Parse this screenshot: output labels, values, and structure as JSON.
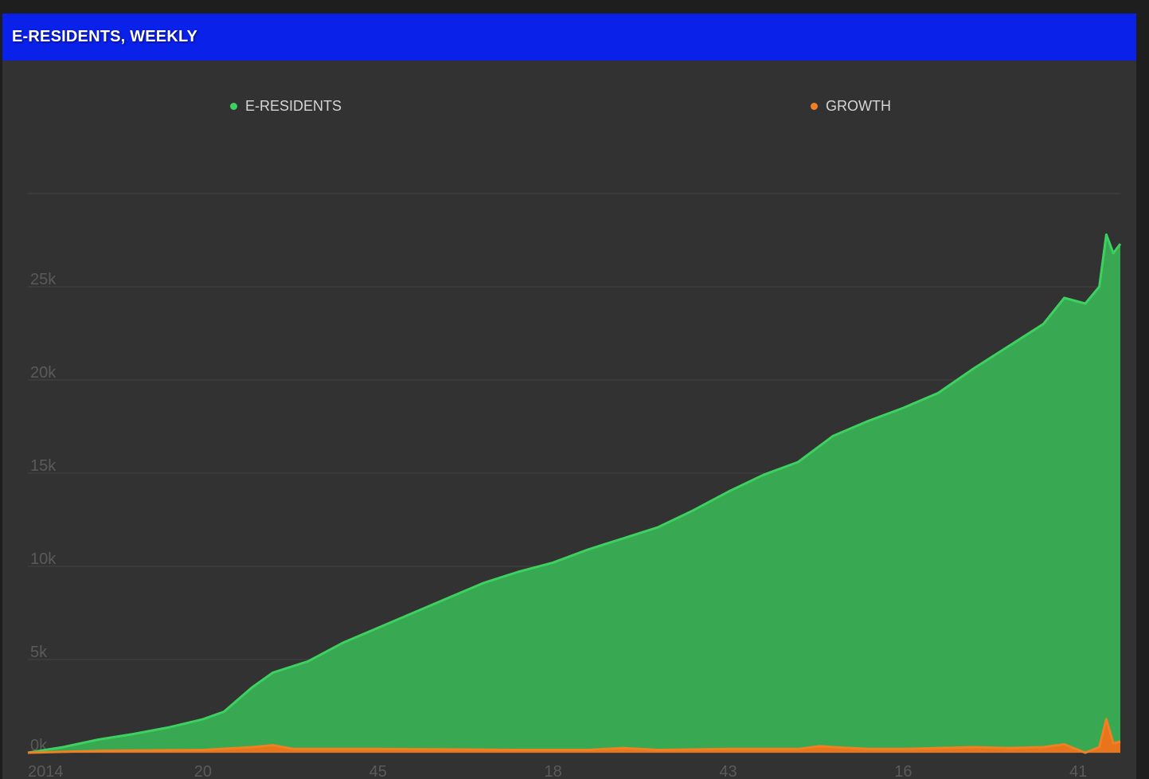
{
  "header": {
    "title": "E-RESIDENTS, WEEKLY"
  },
  "legend": [
    {
      "label": "E-RESIDENTS",
      "color": "#3dd160"
    },
    {
      "label": "GROWTH",
      "color": "#f08022"
    }
  ],
  "chart_data": {
    "type": "area",
    "title": "E-RESIDENTS, WEEKLY",
    "xlabel": "",
    "ylabel": "",
    "ylim": [
      0,
      30000
    ],
    "y_ticks": [
      "0k",
      "5k",
      "10k",
      "15k",
      "20k",
      "25k"
    ],
    "y_tick_values": [
      0,
      5000,
      10000,
      15000,
      20000,
      25000
    ],
    "x_tick_labels": [
      "2014",
      "20",
      "45",
      "18",
      "43",
      "16",
      "41"
    ],
    "x_tick_weeks": [
      0,
      25,
      50,
      75,
      100,
      125,
      150
    ],
    "grid": true,
    "legend_position": "top",
    "series": [
      {
        "name": "E-RESIDENTS",
        "color": "#3dd160",
        "fill": "#38a852",
        "points": [
          [
            0,
            0
          ],
          [
            5,
            300
          ],
          [
            10,
            700
          ],
          [
            15,
            1000
          ],
          [
            20,
            1350
          ],
          [
            25,
            1800
          ],
          [
            28,
            2200
          ],
          [
            32,
            3500
          ],
          [
            35,
            4300
          ],
          [
            40,
            4900
          ],
          [
            45,
            5900
          ],
          [
            50,
            6700
          ],
          [
            55,
            7500
          ],
          [
            60,
            8300
          ],
          [
            65,
            9100
          ],
          [
            70,
            9700
          ],
          [
            75,
            10200
          ],
          [
            80,
            10900
          ],
          [
            85,
            11500
          ],
          [
            90,
            12100
          ],
          [
            95,
            13000
          ],
          [
            100,
            14000
          ],
          [
            105,
            14900
          ],
          [
            110,
            15600
          ],
          [
            115,
            17000
          ],
          [
            120,
            17800
          ],
          [
            125,
            18500
          ],
          [
            130,
            19300
          ],
          [
            135,
            20600
          ],
          [
            140,
            21800
          ],
          [
            145,
            23000
          ],
          [
            148,
            24400
          ],
          [
            151,
            24100
          ],
          [
            153,
            25000
          ],
          [
            154,
            27800
          ],
          [
            155,
            26800
          ],
          [
            156,
            27300
          ]
        ]
      },
      {
        "name": "GROWTH",
        "color": "#f08022",
        "fill": "#e8741c",
        "points": [
          [
            0,
            0
          ],
          [
            10,
            100
          ],
          [
            25,
            150
          ],
          [
            32,
            300
          ],
          [
            35,
            400
          ],
          [
            38,
            200
          ],
          [
            45,
            200
          ],
          [
            50,
            200
          ],
          [
            60,
            180
          ],
          [
            70,
            150
          ],
          [
            80,
            150
          ],
          [
            85,
            250
          ],
          [
            90,
            150
          ],
          [
            100,
            200
          ],
          [
            110,
            200
          ],
          [
            113,
            350
          ],
          [
            115,
            300
          ],
          [
            120,
            200
          ],
          [
            125,
            200
          ],
          [
            130,
            250
          ],
          [
            135,
            300
          ],
          [
            140,
            250
          ],
          [
            145,
            300
          ],
          [
            148,
            450
          ],
          [
            151,
            0
          ],
          [
            153,
            300
          ],
          [
            154,
            1800
          ],
          [
            155,
            500
          ],
          [
            156,
            600
          ]
        ]
      }
    ]
  }
}
